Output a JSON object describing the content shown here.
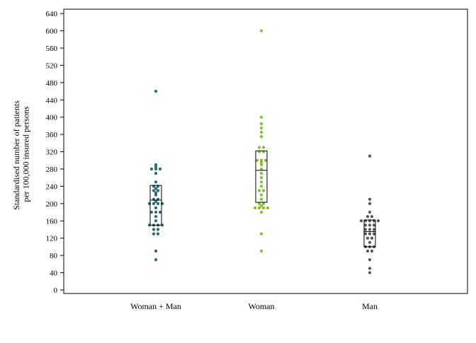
{
  "chart_data": {
    "type": "scatter",
    "title": "",
    "ylabel_lines": [
      "Standardised number of patients",
      "per 100,000 insured persons"
    ],
    "xlabel": "",
    "ylim": [
      0,
      650
    ],
    "yticks": [
      0,
      40,
      80,
      120,
      160,
      200,
      240,
      280,
      320,
      360,
      400,
      440,
      480,
      520,
      560,
      600,
      640
    ],
    "categories": [
      "Woman + Man",
      "Woman",
      "Man"
    ],
    "grid": false,
    "legend": "none",
    "series": [
      {
        "color": "#1f6b7a",
        "values": [
          460,
          290,
          285,
          280,
          280,
          280,
          270,
          250,
          240,
          240,
          235,
          230,
          230,
          225,
          220,
          210,
          210,
          205,
          200,
          200,
          200,
          200,
          190,
          180,
          180,
          180,
          170,
          160,
          150,
          150,
          150,
          150,
          140,
          140,
          130,
          130,
          90,
          70
        ],
        "box": {
          "q1": 150,
          "median": 208,
          "q3": 242
        }
      },
      {
        "color": "#7dc21f",
        "values": [
          600,
          400,
          385,
          375,
          365,
          355,
          330,
          330,
          320,
          320,
          300,
          300,
          300,
          295,
          290,
          280,
          270,
          260,
          250,
          240,
          230,
          230,
          220,
          210,
          200,
          200,
          195,
          190,
          190,
          190,
          190,
          180,
          130,
          90
        ],
        "box": {
          "q1": 203,
          "median": 277,
          "q3": 322
        }
      },
      {
        "color": "#555555",
        "values": [
          310,
          210,
          200,
          180,
          170,
          170,
          160,
          160,
          160,
          160,
          160,
          150,
          150,
          150,
          140,
          140,
          140,
          130,
          130,
          130,
          120,
          120,
          110,
          100,
          100,
          100,
          90,
          90,
          70,
          50,
          40
        ],
        "box": {
          "q1": 100,
          "median": 135,
          "q3": 162
        }
      }
    ]
  }
}
